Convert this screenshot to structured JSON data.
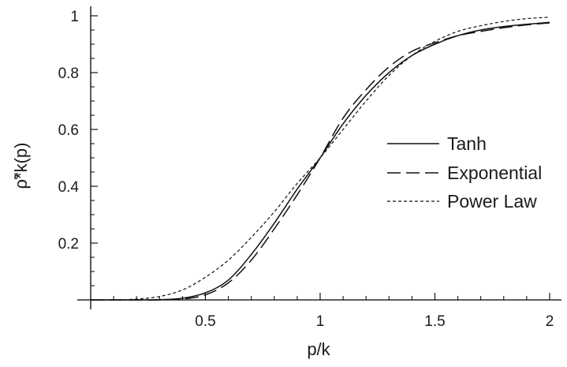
{
  "chart_data": {
    "type": "line",
    "title": "",
    "xlabel": "p/k",
    "ylabel": "ρ̃*k(p)",
    "xlim": [
      0,
      2.05
    ],
    "ylim": [
      0,
      1.02
    ],
    "x_ticks": [
      0.5,
      1,
      1.5,
      2
    ],
    "x_tick_labels": [
      "0.5",
      "1",
      "1.5",
      "2"
    ],
    "y_ticks": [
      0.2,
      0.4,
      0.6,
      0.8,
      1
    ],
    "y_tick_labels": [
      "0.2",
      "0.4",
      "0.6",
      "0.8",
      "1"
    ],
    "grid": false,
    "legend_position": "right",
    "x": [
      0.0,
      0.1,
      0.2,
      0.3,
      0.4,
      0.5,
      0.6,
      0.7,
      0.8,
      0.9,
      1.0,
      1.1,
      1.2,
      1.3,
      1.4,
      1.5,
      1.6,
      1.7,
      1.8,
      1.9,
      2.0
    ],
    "series": [
      {
        "name": "Tanh",
        "style": "solid",
        "values": [
          0.0,
          0.0,
          0.0,
          0.001,
          0.006,
          0.025,
          0.07,
          0.16,
          0.27,
          0.39,
          0.5,
          0.62,
          0.72,
          0.8,
          0.86,
          0.9,
          0.93,
          0.95,
          0.962,
          0.97,
          0.977
        ]
      },
      {
        "name": "Exponential",
        "style": "long-dash",
        "values": [
          0.0,
          0.0,
          0.0,
          0.0,
          0.003,
          0.018,
          0.06,
          0.14,
          0.25,
          0.37,
          0.5,
          0.64,
          0.74,
          0.82,
          0.875,
          0.905,
          0.93,
          0.945,
          0.958,
          0.968,
          0.975
        ]
      },
      {
        "name": "Power Law",
        "style": "short-dash",
        "values": [
          0.0,
          0.0,
          0.003,
          0.012,
          0.035,
          0.08,
          0.14,
          0.22,
          0.31,
          0.41,
          0.5,
          0.6,
          0.7,
          0.79,
          0.86,
          0.91,
          0.945,
          0.965,
          0.98,
          0.99,
          0.995
        ]
      }
    ]
  }
}
